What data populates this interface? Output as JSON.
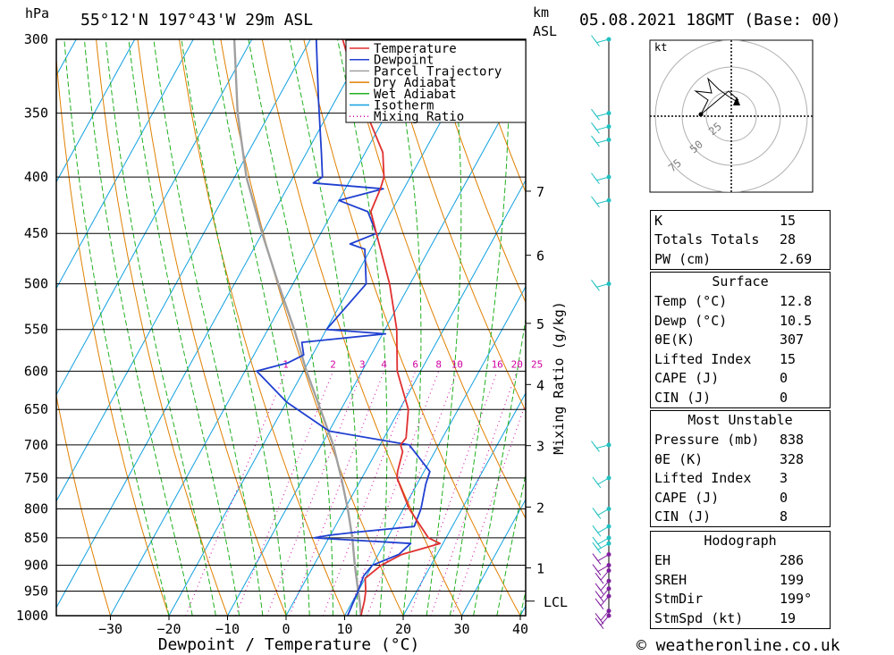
{
  "header": {
    "pressure_unit": "hPa",
    "location": "55°12'N  197°43'W  29m  ASL",
    "km_label": "km",
    "asl_label": "ASL",
    "datetime": "05.08.2021  18GMT  (Base: 00)"
  },
  "chart_data": {
    "type": "line",
    "subtype": "skew-T log-P sounding",
    "xlabel": "Dewpoint / Temperature (°C)",
    "ylabel": "hPa",
    "right_axis_label": "Mixing Ratio (g/kg)",
    "x_ticks": [
      -30,
      -20,
      -10,
      0,
      10,
      20,
      30,
      40
    ],
    "xlim": [
      -40,
      40
    ],
    "pressure_ticks": [
      300,
      350,
      400,
      450,
      500,
      550,
      600,
      650,
      700,
      750,
      800,
      850,
      900,
      950,
      1000
    ],
    "ylim": [
      1000,
      300
    ],
    "km_ticks": [
      {
        "km": "1",
        "p": 905
      },
      {
        "km": "2",
        "p": 797
      },
      {
        "km": "3",
        "p": 701
      },
      {
        "km": "4",
        "p": 617
      },
      {
        "km": "5",
        "p": 543
      },
      {
        "km": "6",
        "p": 471
      },
      {
        "km": "7",
        "p": 412
      }
    ],
    "lcl_label": "LCL",
    "lcl_pressure": 970,
    "mixing_ratio_labels": [
      "1",
      "2",
      "3",
      "4",
      "6",
      "8",
      "10",
      "16",
      "20",
      "25"
    ],
    "mixing_ratio_values": [
      1,
      2,
      3,
      4,
      6,
      8,
      10,
      16,
      20,
      25
    ],
    "legend": [
      {
        "name": "Temperature",
        "color": "#e03030",
        "style": "solid"
      },
      {
        "name": "Dewpoint",
        "color": "#2040d0",
        "style": "solid"
      },
      {
        "name": "Parcel Trajectory",
        "color": "#a0a0a0",
        "style": "solid"
      },
      {
        "name": "Dry Adiabat",
        "color": "#e08000",
        "style": "solid"
      },
      {
        "name": "Wet Adiabat",
        "color": "#20b020",
        "style": "solid"
      },
      {
        "name": "Isotherm",
        "color": "#10a0e0",
        "style": "solid"
      },
      {
        "name": "Mixing Ratio",
        "color": "#d000a0",
        "style": "dotted"
      }
    ],
    "series": [
      {
        "name": "Temperature",
        "color": "#e03030",
        "points": [
          [
            1000,
            12.8
          ],
          [
            970,
            12.0
          ],
          [
            950,
            11.3
          ],
          [
            925,
            10.0
          ],
          [
            900,
            11.5
          ],
          [
            880,
            14.0
          ],
          [
            860,
            19.5
          ],
          [
            850,
            17.0
          ],
          [
            800,
            11.0
          ],
          [
            750,
            6.0
          ],
          [
            740,
            5.5
          ],
          [
            710,
            4.5
          ],
          [
            700,
            3.5
          ],
          [
            690,
            3.8
          ],
          [
            650,
            1.5
          ],
          [
            600,
            -4.0
          ],
          [
            550,
            -8.0
          ],
          [
            500,
            -13.5
          ],
          [
            450,
            -20.5
          ],
          [
            430,
            -23.5
          ],
          [
            410,
            -24.0
          ],
          [
            400,
            -24.5
          ],
          [
            380,
            -27.0
          ],
          [
            350,
            -33.5
          ],
          [
            325,
            -39.0
          ],
          [
            300,
            -44.5
          ]
        ]
      },
      {
        "name": "Dewpoint",
        "color": "#2040d0",
        "points": [
          [
            1000,
            10.5
          ],
          [
            950,
            10.0
          ],
          [
            920,
            9.5
          ],
          [
            900,
            10.0
          ],
          [
            880,
            13.5
          ],
          [
            860,
            14.5
          ],
          [
            850,
            -2.5
          ],
          [
            845,
            0.0
          ],
          [
            840,
            4.0
          ],
          [
            830,
            13.5
          ],
          [
            800,
            13.0
          ],
          [
            760,
            11.5
          ],
          [
            740,
            11.0
          ],
          [
            700,
            5.0
          ],
          [
            680,
            -10.0
          ],
          [
            640,
            -20.0
          ],
          [
            600,
            -28.0
          ],
          [
            590,
            -23.5
          ],
          [
            580,
            -21.5
          ],
          [
            565,
            -23.0
          ],
          [
            555,
            -9.5
          ],
          [
            550,
            -20.0
          ],
          [
            500,
            -17.5
          ],
          [
            465,
            -21.0
          ],
          [
            460,
            -24.0
          ],
          [
            450,
            -20.5
          ],
          [
            430,
            -24.0
          ],
          [
            420,
            -30.0
          ],
          [
            410,
            -23.5
          ],
          [
            405,
            -36.0
          ],
          [
            400,
            -35.0
          ],
          [
            380,
            -37.5
          ],
          [
            340,
            -43.0
          ],
          [
            300,
            -49.0
          ]
        ]
      },
      {
        "name": "Parcel Trajectory",
        "color": "#a0a0a0",
        "points": [
          [
            1000,
            12.8
          ],
          [
            970,
            11.2
          ],
          [
            950,
            10.0
          ],
          [
            900,
            7.0
          ],
          [
            850,
            4.0
          ],
          [
            800,
            0.5
          ],
          [
            750,
            -3.5
          ],
          [
            700,
            -8.0
          ],
          [
            650,
            -13.5
          ],
          [
            600,
            -19.5
          ],
          [
            550,
            -25.5
          ],
          [
            500,
            -32.5
          ],
          [
            450,
            -40.0
          ],
          [
            400,
            -48.0
          ],
          [
            350,
            -55.5
          ],
          [
            300,
            -63.0
          ]
        ]
      }
    ],
    "wind_barb_pressures": [
      1000,
      990,
      960,
      945,
      930,
      910,
      900,
      880,
      860,
      850,
      830,
      800,
      750,
      700,
      500,
      420,
      400,
      370,
      360,
      350,
      300
    ],
    "hodograph": {
      "unit": "kt",
      "ring_labels": [
        "25",
        "50",
        "75"
      ]
    }
  },
  "indices": {
    "k_label": "K",
    "k_value": "15",
    "tt_label": "Totals Totals",
    "tt_value": "28",
    "pw_label": "PW (cm)",
    "pw_value": "2.69"
  },
  "surface": {
    "title": "Surface",
    "temp_label": "Temp (°C)",
    "temp_value": "12.8",
    "dewp_label": "Dewp (°C)",
    "dewp_value": "10.5",
    "theta_label": "θE(K)",
    "theta_value": "307",
    "li_label": "Lifted Index",
    "li_value": "15",
    "cape_label": "CAPE (J)",
    "cape_value": "0",
    "cin_label": "CIN (J)",
    "cin_value": "0"
  },
  "most_unstable": {
    "title": "Most Unstable",
    "pressure_label": "Pressure (mb)",
    "pressure_value": "838",
    "theta_label": "θE (K)",
    "theta_value": "328",
    "li_label": "Lifted Index",
    "li_value": "3",
    "cape_label": "CAPE (J)",
    "cape_value": "0",
    "cin_label": "CIN (J)",
    "cin_value": "8"
  },
  "hodograph_table": {
    "title": "Hodograph",
    "eh_label": "EH",
    "eh_value": "286",
    "sreh_label": "SREH",
    "sreh_value": "199",
    "stmdir_label": "StmDir",
    "stmdir_value": "199°",
    "stmspd_label": "StmSpd (kt)",
    "stmspd_value": "19"
  },
  "footer": {
    "copyright": "© weatheronline.co.uk"
  }
}
